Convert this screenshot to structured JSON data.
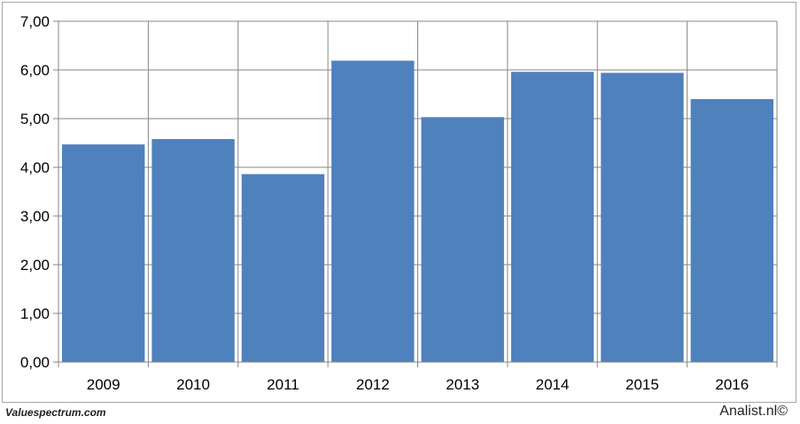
{
  "chart_data": {
    "type": "bar",
    "categories": [
      "2009",
      "2010",
      "2011",
      "2012",
      "2013",
      "2014",
      "2015",
      "2016"
    ],
    "values": [
      4.47,
      4.58,
      3.86,
      6.19,
      5.03,
      5.96,
      5.94,
      5.4
    ],
    "ylim": [
      0,
      7
    ],
    "yticks": [
      "0,00",
      "1,00",
      "2,00",
      "3,00",
      "4,00",
      "5,00",
      "6,00",
      "7,00"
    ],
    "title": "",
    "xlabel": "",
    "ylabel": "",
    "grid": true,
    "bar_color": "#4f81bd",
    "grid_color": "#868686"
  },
  "footer": {
    "source_left": "Valuespectrum.com",
    "source_right": "Analist.nl©"
  }
}
